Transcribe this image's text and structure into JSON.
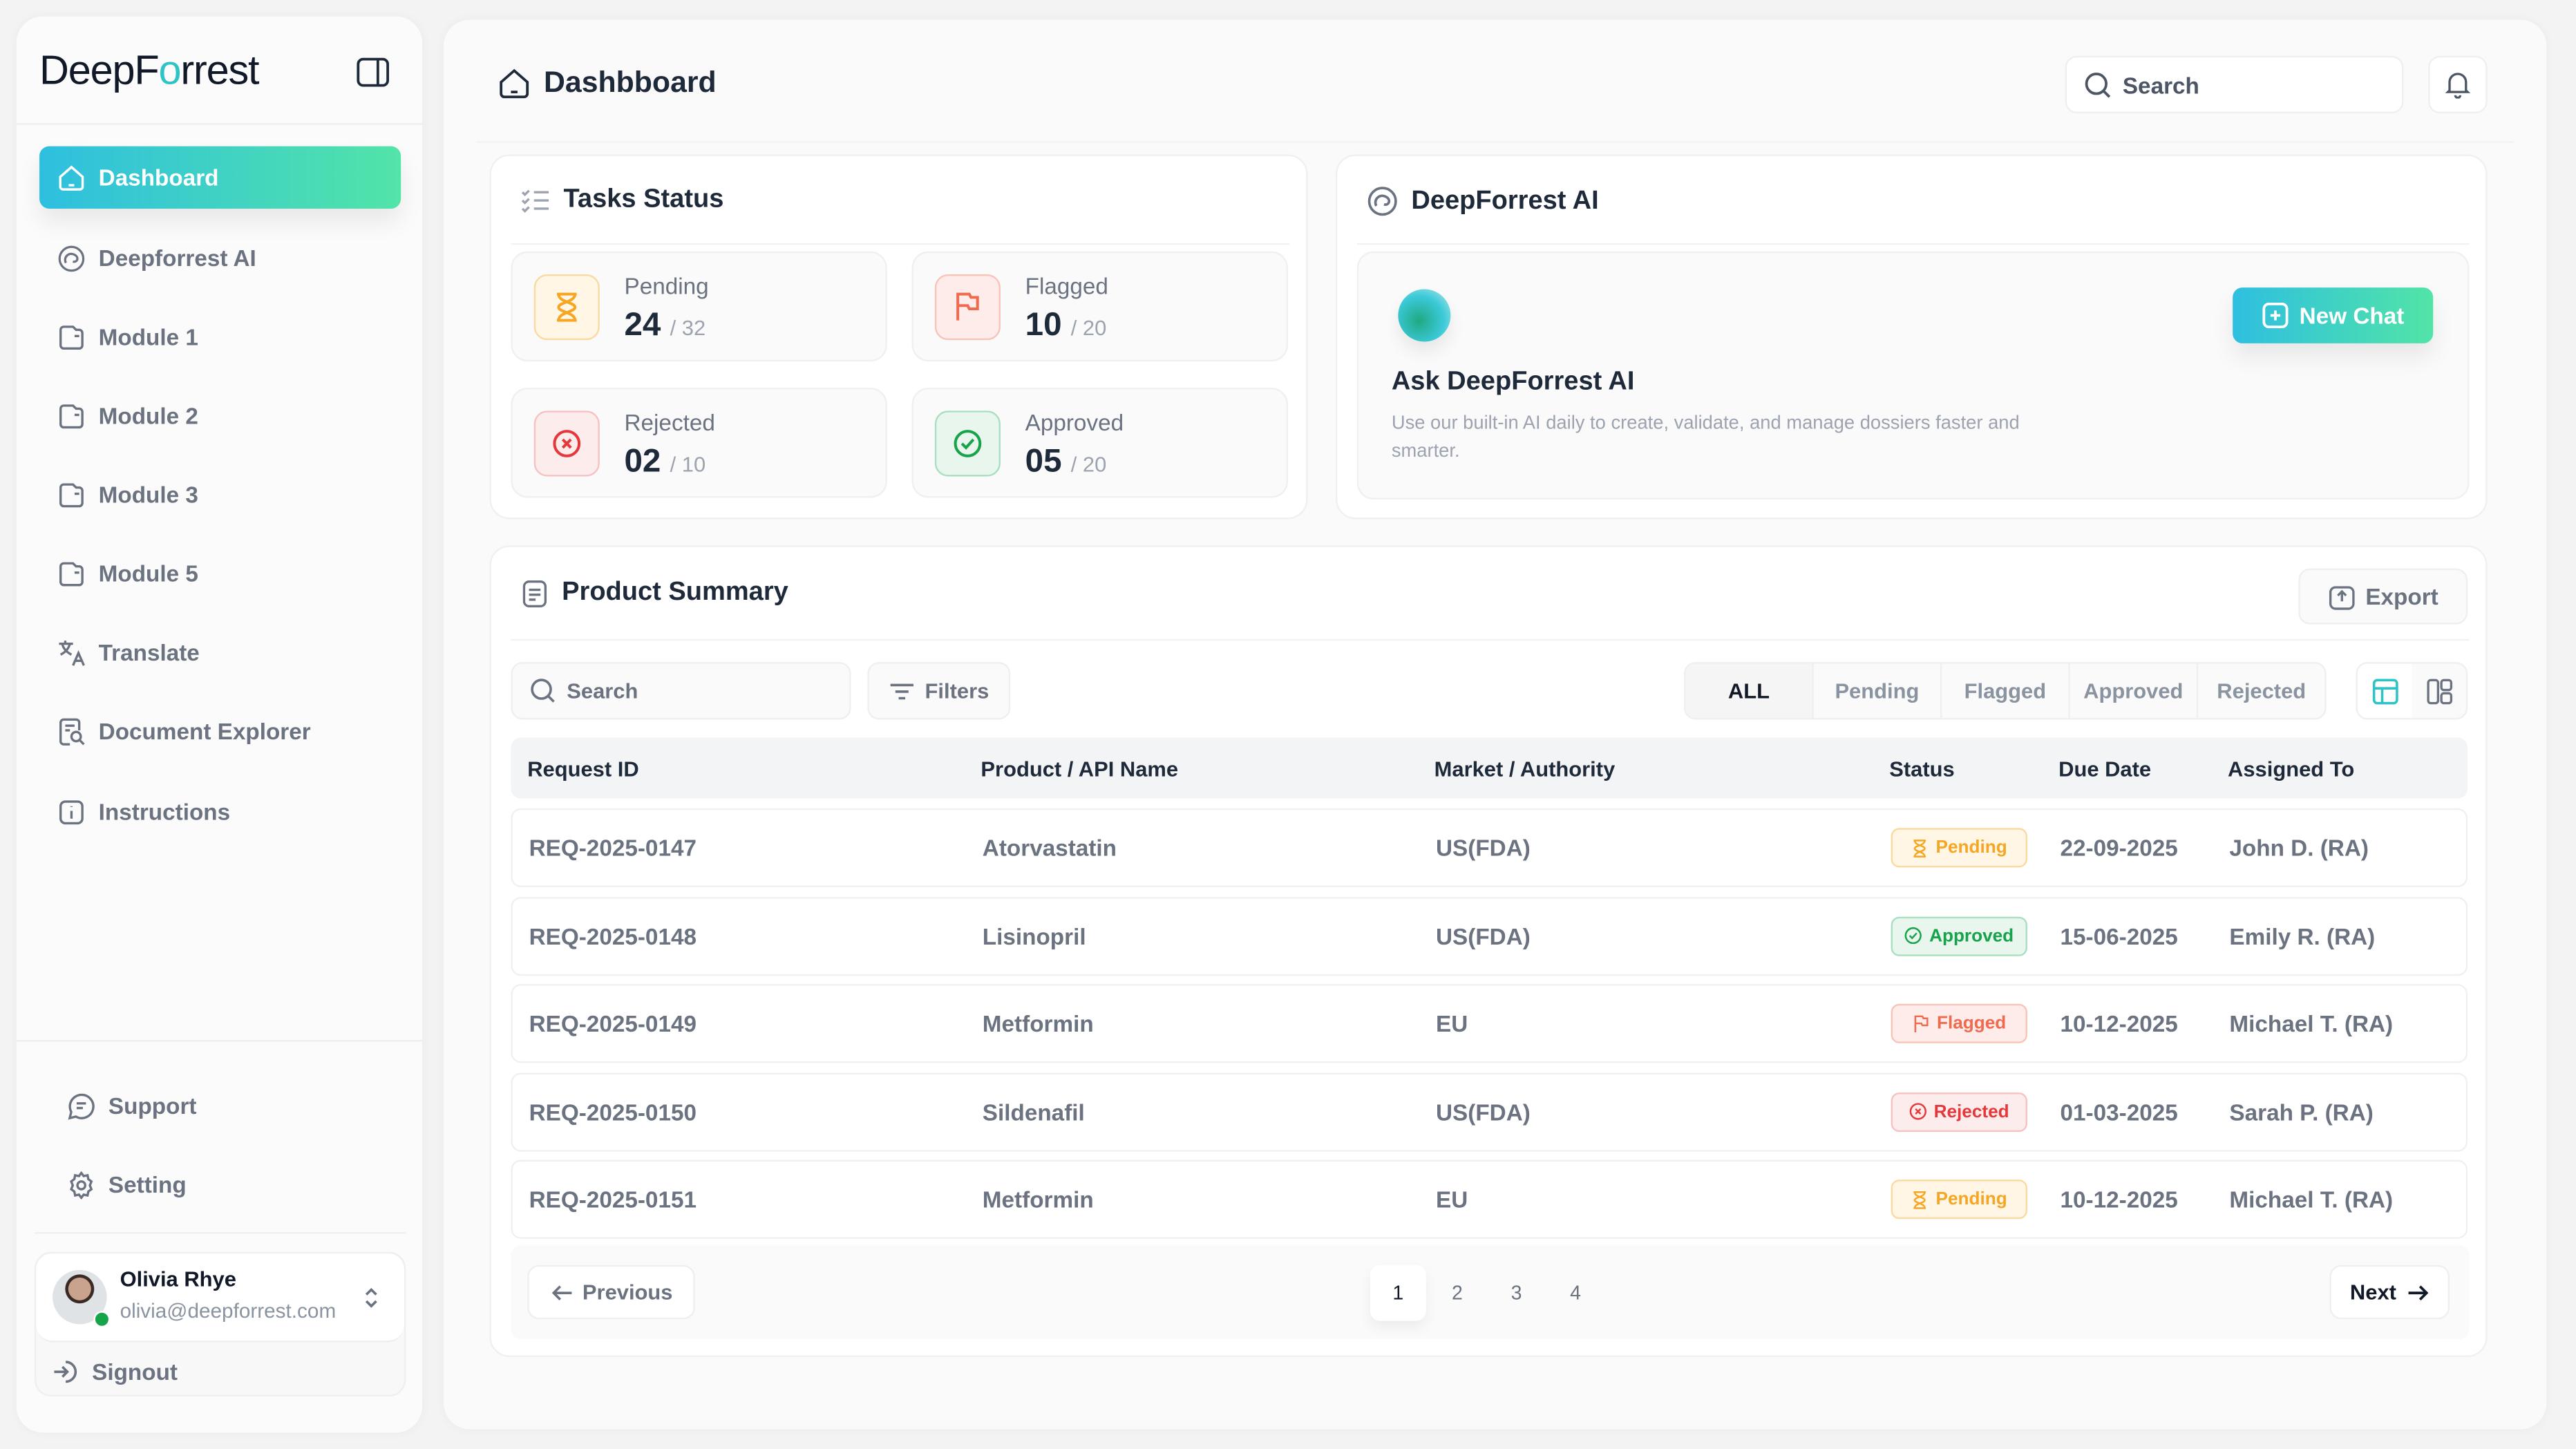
{
  "sidebar": {
    "logo": {
      "prefix": "DeepF",
      "o": "o",
      "suffix": "rrest"
    },
    "items": [
      {
        "label": "Dashboard",
        "icon": "home-icon",
        "active": true
      },
      {
        "label": "Deepforrest AI",
        "icon": "spiral-icon"
      },
      {
        "label": "Module 1",
        "icon": "folder-icon"
      },
      {
        "label": "Module 2",
        "icon": "folder-icon"
      },
      {
        "label": "Module 3",
        "icon": "folder-icon"
      },
      {
        "label": "Module 5",
        "icon": "folder-icon"
      },
      {
        "label": "Translate",
        "icon": "translate-icon"
      },
      {
        "label": "Document Explorer",
        "icon": "document-search-icon"
      },
      {
        "label": "Instructions",
        "icon": "info-icon"
      }
    ],
    "bottom": [
      {
        "label": "Support",
        "icon": "chat-icon"
      },
      {
        "label": "Setting",
        "icon": "gear-icon"
      }
    ],
    "user": {
      "name": "Olivia Rhye",
      "email": "olivia@deepforrest.com",
      "status": "online"
    },
    "signout": "Signout"
  },
  "header": {
    "title": "Dashbboard",
    "search_placeholder": "Search"
  },
  "tasks": {
    "title": "Tasks Status",
    "stats": [
      {
        "label": "Pending",
        "value": "24",
        "total": "/ 32",
        "color": "#f5a623"
      },
      {
        "label": "Flagged",
        "value": "10",
        "total": "/ 20",
        "color": "#f06a4f"
      },
      {
        "label": "Rejected",
        "value": "02",
        "total": "/ 10",
        "color": "#e5383b"
      },
      {
        "label": "Approved",
        "value": "05",
        "total": "/ 20",
        "color": "#16a34a"
      }
    ]
  },
  "ai": {
    "title": "DeepForrest AI",
    "heading": "Ask DeepForrest AI",
    "description": "Use our built-in AI daily to create, validate, and manage dossiers faster and smarter.",
    "new_chat": "New Chat"
  },
  "products": {
    "title": "Product Summary",
    "export": "Export",
    "search_placeholder": "Search",
    "filters": "Filters",
    "tabs": [
      "ALL",
      "Pending",
      "Flagged",
      "Approved",
      "Rejected"
    ],
    "active_tab": "ALL",
    "columns": [
      "Request ID",
      "Product / API Name",
      "Market / Authority",
      "Status",
      "Due Date",
      "Assigned To"
    ],
    "rows": [
      {
        "id": "REQ-2025-0147",
        "product": "Atorvastatin",
        "market": "US(FDA)",
        "status": "Pending",
        "due": "22-09-2025",
        "assigned": "John D. (RA)"
      },
      {
        "id": "REQ-2025-0148",
        "product": "Lisinopril",
        "market": "US(FDA)",
        "status": "Approved",
        "due": "15-06-2025",
        "assigned": "Emily R. (RA)"
      },
      {
        "id": "REQ-2025-0149",
        "product": "Metformin",
        "market": "EU",
        "status": "Flagged",
        "due": "10-12-2025",
        "assigned": "Michael T. (RA)"
      },
      {
        "id": "REQ-2025-0150",
        "product": "Sildenafil",
        "market": "US(FDA)",
        "status": "Rejected",
        "due": "01-03-2025",
        "assigned": "Sarah P. (RA)"
      },
      {
        "id": "REQ-2025-0151",
        "product": "Metformin",
        "market": "EU",
        "status": "Pending",
        "due": "10-12-2025",
        "assigned": "Michael T. (RA)"
      }
    ],
    "pagination": {
      "previous": "Previous",
      "next": "Next",
      "pages": [
        "1",
        "2",
        "3",
        "4"
      ],
      "current": "1"
    }
  },
  "colors": {
    "accent_start": "#2ebfe0",
    "accent_end": "#52e4a7",
    "pending": "#f5a623",
    "approved": "#16a34a",
    "flagged": "#f06a4f",
    "rejected": "#e5383b"
  }
}
